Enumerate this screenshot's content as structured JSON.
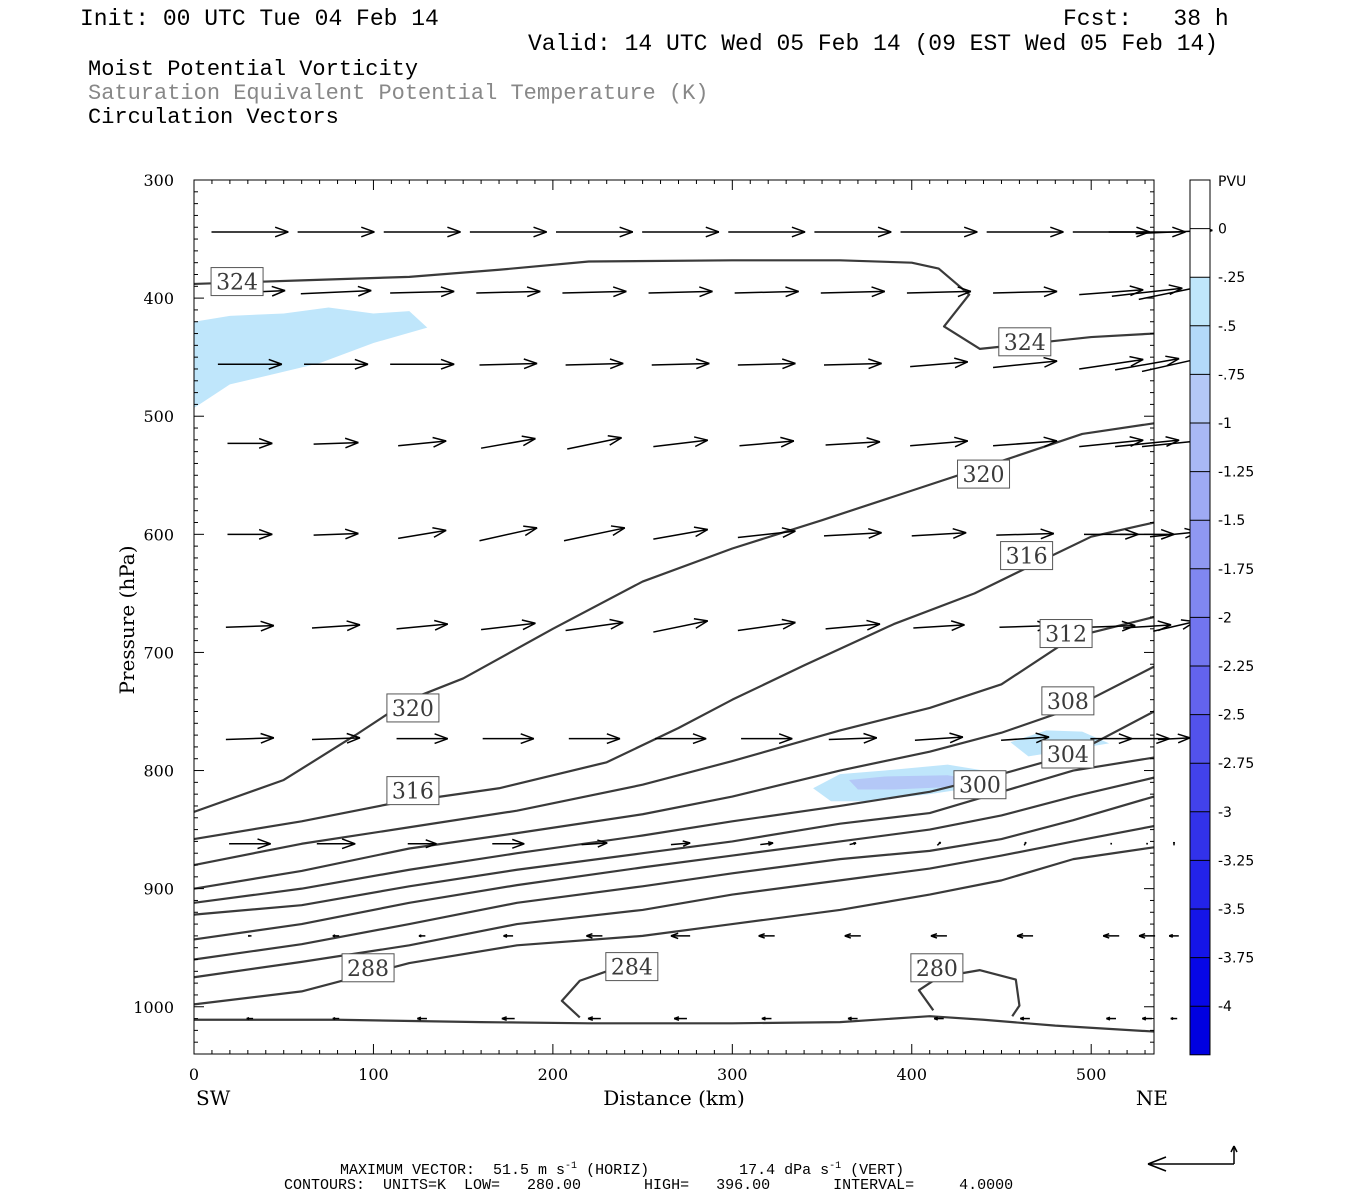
{
  "header": {
    "init": "Init: 00 UTC Tue 04 Feb 14",
    "fcst": "Fcst:   38 h",
    "valid": "Valid: 14 UTC Wed 05 Feb 14 (09 EST Wed 05 Feb 14)",
    "line1": "Moist Potential Vorticity",
    "line2": "Saturation Equivalent Potential Temperature (K)",
    "line3": "Circulation Vectors"
  },
  "footer": {
    "max_vector_prefix": "MAXIMUM VECTOR:  51.5 m s",
    "max_vector_mid": " (HORIZ)          17.4 dPa s",
    "max_vector_end": " (VERT)",
    "superscript": "-1",
    "contours": "CONTOURS:  UNITS=K  LOW=   280.00       HIGH=   396.00       INTERVAL=     4.0000"
  },
  "colors": {
    "contour": "#3a3a3a",
    "pv_light": "#bfe6fb",
    "pv_mid": "#a9b8f5",
    "axis": "#000000"
  },
  "chart_data": {
    "type": "cross-section",
    "xlabel": "Distance (km)",
    "ylabel": "Pressure (hPa)",
    "xlim": [
      0,
      535
    ],
    "ylim": [
      300,
      1040
    ],
    "y_log_like": false,
    "x_ticks": [
      "0",
      "100",
      "200",
      "300",
      "400",
      "500"
    ],
    "y_ticks": [
      "300",
      "400",
      "500",
      "600",
      "700",
      "800",
      "900",
      "1000"
    ],
    "left_end_label": "SW",
    "right_end_label": "NE",
    "colorbar": {
      "title": "PVU",
      "labels": [
        "0",
        "-.25",
        "-.5",
        "-.75",
        "-1",
        "-1.25",
        "-1.5",
        "-1.75",
        "-2",
        "-2.25",
        "-2.5",
        "-2.75",
        "-3",
        "-3.25",
        "-3.5",
        "-3.75",
        "-4"
      ],
      "colors": [
        "#ffffff",
        "#ffffff",
        "#bfe6fb",
        "#b3d9fa",
        "#b4c8f7",
        "#a9b8f5",
        "#9eaaf4",
        "#8f98f2",
        "#8087f1",
        "#7275ef",
        "#6363ee",
        "#5252ec",
        "#4242eb",
        "#3232ea",
        "#2323e9",
        "#1515e8",
        "#0707e6",
        "#0000e0"
      ]
    },
    "contour_labels": [
      {
        "value": "324",
        "x": 24,
        "p": 386
      },
      {
        "value": "324",
        "x": 463,
        "p": 437
      },
      {
        "value": "320",
        "x": 440,
        "p": 549
      },
      {
        "value": "316",
        "x": 464,
        "p": 618
      },
      {
        "value": "312",
        "x": 486,
        "p": 684
      },
      {
        "value": "308",
        "x": 487,
        "p": 741
      },
      {
        "value": "304",
        "x": 487,
        "p": 786
      },
      {
        "value": "300",
        "x": 438,
        "p": 812
      },
      {
        "value": "320",
        "x": 122,
        "p": 747
      },
      {
        "value": "316",
        "x": 122,
        "p": 817
      },
      {
        "value": "288",
        "x": 97,
        "p": 967
      },
      {
        "value": "284",
        "x": 244,
        "p": 966
      },
      {
        "value": "280",
        "x": 414,
        "p": 967
      }
    ],
    "contours": [
      {
        "value": 324,
        "points": [
          [
            0,
            388
          ],
          [
            60,
            385
          ],
          [
            120,
            382
          ],
          [
            170,
            376
          ],
          [
            220,
            369
          ],
          [
            300,
            368
          ],
          [
            360,
            368
          ],
          [
            400,
            370
          ],
          [
            415,
            375
          ],
          [
            432,
            397
          ],
          [
            418,
            424
          ],
          [
            438,
            443
          ],
          [
            500,
            433
          ],
          [
            535,
            430
          ]
        ]
      },
      {
        "value": 320,
        "points": [
          [
            0,
            835
          ],
          [
            50,
            808
          ],
          [
            90,
            770
          ],
          [
            120,
            740
          ],
          [
            150,
            722
          ],
          [
            200,
            680
          ],
          [
            250,
            640
          ],
          [
            300,
            612
          ],
          [
            350,
            588
          ],
          [
            400,
            563
          ],
          [
            450,
            538
          ],
          [
            495,
            515
          ],
          [
            535,
            506
          ]
        ]
      },
      {
        "value": 316,
        "points": [
          [
            0,
            858
          ],
          [
            60,
            843
          ],
          [
            110,
            828
          ],
          [
            170,
            815
          ],
          [
            230,
            793
          ],
          [
            270,
            764
          ],
          [
            300,
            740
          ],
          [
            340,
            711
          ],
          [
            390,
            676
          ],
          [
            435,
            650
          ],
          [
            470,
            624
          ],
          [
            500,
            602
          ],
          [
            535,
            590
          ]
        ]
      },
      {
        "value": 312,
        "points": [
          [
            0,
            880
          ],
          [
            60,
            862
          ],
          [
            120,
            848
          ],
          [
            180,
            834
          ],
          [
            250,
            812
          ],
          [
            300,
            792
          ],
          [
            360,
            766
          ],
          [
            410,
            747
          ],
          [
            450,
            727
          ],
          [
            490,
            687
          ],
          [
            535,
            670
          ]
        ]
      },
      {
        "value": 308,
        "points": [
          [
            0,
            900
          ],
          [
            60,
            885
          ],
          [
            120,
            866
          ],
          [
            180,
            853
          ],
          [
            250,
            837
          ],
          [
            300,
            822
          ],
          [
            360,
            800
          ],
          [
            410,
            784
          ],
          [
            450,
            768
          ],
          [
            490,
            747
          ],
          [
            535,
            712
          ]
        ]
      },
      {
        "value": 304,
        "points": [
          [
            0,
            912
          ],
          [
            60,
            900
          ],
          [
            120,
            884
          ],
          [
            180,
            870
          ],
          [
            250,
            855
          ],
          [
            300,
            843
          ],
          [
            360,
            830
          ],
          [
            410,
            818
          ],
          [
            450,
            803
          ],
          [
            490,
            786
          ],
          [
            535,
            750
          ]
        ]
      },
      {
        "value": 300,
        "points": [
          [
            0,
            922
          ],
          [
            60,
            914
          ],
          [
            120,
            898
          ],
          [
            180,
            884
          ],
          [
            250,
            870
          ],
          [
            300,
            860
          ],
          [
            360,
            845
          ],
          [
            410,
            836
          ],
          [
            450,
            818
          ],
          [
            490,
            800
          ],
          [
            535,
            789
          ]
        ]
      },
      {
        "value": 296,
        "points": [
          [
            0,
            943
          ],
          [
            60,
            930
          ],
          [
            120,
            912
          ],
          [
            180,
            897
          ],
          [
            250,
            882
          ],
          [
            300,
            872
          ],
          [
            360,
            860
          ],
          [
            410,
            850
          ],
          [
            450,
            838
          ],
          [
            490,
            822
          ],
          [
            535,
            806
          ]
        ]
      },
      {
        "value": 292,
        "points": [
          [
            0,
            960
          ],
          [
            60,
            947
          ],
          [
            120,
            930
          ],
          [
            180,
            912
          ],
          [
            250,
            898
          ],
          [
            300,
            887
          ],
          [
            360,
            875
          ],
          [
            410,
            868
          ],
          [
            450,
            858
          ],
          [
            490,
            842
          ],
          [
            535,
            822
          ]
        ]
      },
      {
        "value": 288,
        "points": [
          [
            0,
            975
          ],
          [
            60,
            962
          ],
          [
            120,
            948
          ],
          [
            180,
            930
          ],
          [
            250,
            918
          ],
          [
            300,
            905
          ],
          [
            360,
            893
          ],
          [
            410,
            883
          ],
          [
            450,
            872
          ],
          [
            490,
            860
          ],
          [
            535,
            847
          ]
        ]
      },
      {
        "value": 284,
        "points": [
          [
            0,
            998
          ],
          [
            60,
            987
          ],
          [
            120,
            963
          ],
          [
            180,
            948
          ],
          [
            250,
            940
          ],
          [
            300,
            930
          ],
          [
            360,
            918
          ],
          [
            410,
            905
          ],
          [
            450,
            893
          ],
          [
            490,
            875
          ],
          [
            535,
            865
          ]
        ]
      },
      {
        "value": 280,
        "points": [
          [
            0,
            1011
          ],
          [
            80,
            1011
          ],
          [
            160,
            1013
          ],
          [
            220,
            1014
          ],
          [
            300,
            1014
          ],
          [
            360,
            1013
          ],
          [
            410,
            1008
          ],
          [
            440,
            1011
          ],
          [
            480,
            1016
          ],
          [
            535,
            1021
          ]
        ]
      },
      {
        "value": 284,
        "points": [
          [
            215,
            1009
          ],
          [
            205,
            995
          ],
          [
            215,
            978
          ],
          [
            230,
            970
          ]
        ]
      },
      {
        "value": 280,
        "points": [
          [
            412,
            1003
          ],
          [
            404,
            986
          ],
          [
            415,
            975
          ],
          [
            438,
            969
          ],
          [
            458,
            977
          ],
          [
            460,
            999
          ],
          [
            456,
            1008
          ]
        ]
      }
    ],
    "pv_regions": [
      {
        "level": "-.25",
        "points": [
          [
            0,
            420
          ],
          [
            20,
            415
          ],
          [
            50,
            413
          ],
          [
            75,
            408
          ],
          [
            100,
            413
          ],
          [
            120,
            411
          ],
          [
            130,
            425
          ],
          [
            100,
            438
          ],
          [
            70,
            455
          ],
          [
            40,
            466
          ],
          [
            20,
            473
          ],
          [
            0,
            493
          ]
        ]
      },
      {
        "level": "-.25",
        "points": [
          [
            345,
            815
          ],
          [
            360,
            803
          ],
          [
            385,
            800
          ],
          [
            420,
            795
          ],
          [
            440,
            800
          ],
          [
            445,
            812
          ],
          [
            410,
            820
          ],
          [
            375,
            826
          ],
          [
            355,
            826
          ]
        ]
      },
      {
        "level": "-.75",
        "points": [
          [
            365,
            808
          ],
          [
            385,
            805
          ],
          [
            420,
            804
          ],
          [
            435,
            808
          ],
          [
            420,
            814
          ],
          [
            390,
            816
          ],
          [
            370,
            816
          ]
        ]
      },
      {
        "level": "-.25",
        "points": [
          [
            455,
            776
          ],
          [
            475,
            766
          ],
          [
            495,
            767
          ],
          [
            510,
            777
          ],
          [
            490,
            782
          ],
          [
            465,
            788
          ]
        ]
      }
    ],
    "vector_rows": [
      {
        "p": 344,
        "u": [
          48,
          48,
          48,
          48,
          48,
          48,
          48,
          48,
          48,
          48,
          48,
          48,
          48
        ],
        "w": [
          0,
          0,
          0,
          0,
          0,
          0,
          0,
          0,
          0,
          0,
          0,
          0,
          2
        ]
      },
      {
        "p": 395,
        "u": [
          44,
          44,
          40,
          40,
          40,
          40,
          40,
          40,
          40,
          40,
          40,
          44,
          44
        ],
        "w": [
          2,
          2,
          1,
          1,
          1,
          1,
          1,
          1,
          1,
          1,
          3,
          5,
          9
        ]
      },
      {
        "p": 456,
        "u": [
          40,
          40,
          40,
          36,
          36,
          36,
          36,
          36,
          36,
          40,
          40,
          40,
          40
        ],
        "w": [
          0,
          0,
          0,
          1,
          1,
          1,
          1,
          1,
          3,
          4,
          6,
          7,
          9
        ]
      },
      {
        "p": 523,
        "u": [
          28,
          28,
          30,
          34,
          34,
          34,
          34,
          34,
          36,
          40,
          40,
          40,
          40
        ],
        "w": [
          0,
          1,
          3,
          6,
          7,
          4,
          3,
          2,
          3,
          3,
          4,
          4,
          4
        ]
      },
      {
        "p": 600,
        "u": [
          28,
          28,
          30,
          36,
          38,
          34,
          36,
          36,
          34,
          36,
          34,
          34,
          30
        ],
        "w": [
          0,
          1,
          5,
          8,
          8,
          6,
          4,
          2,
          2,
          1,
          0,
          0,
          3
        ]
      },
      {
        "p": 678,
        "u": [
          30,
          30,
          32,
          34,
          36,
          34,
          36,
          34,
          32,
          32,
          30,
          30,
          26
        ],
        "w": [
          1,
          2,
          3,
          4,
          5,
          7,
          5,
          3,
          2,
          1,
          1,
          2,
          6
        ]
      },
      {
        "p": 773,
        "u": [
          30,
          30,
          32,
          32,
          32,
          32,
          32,
          30,
          30,
          30,
          26,
          28,
          20
        ],
        "w": [
          1,
          1,
          0,
          0,
          0,
          0,
          0,
          1,
          2,
          2,
          0,
          0,
          1
        ]
      },
      {
        "p": 862,
        "u": [
          26,
          24,
          18,
          20,
          16,
          12,
          8,
          4,
          2,
          1,
          0,
          0,
          0
        ],
        "w": [
          0,
          0,
          0,
          0,
          1,
          1,
          1,
          1,
          2,
          2,
          1,
          1,
          2
        ]
      },
      {
        "p": 940,
        "u": [
          -2,
          -4,
          -4,
          -6,
          -10,
          -12,
          -10,
          -10,
          -10,
          -10,
          -10,
          -10,
          -6
        ],
        "w": [
          0,
          0,
          0,
          0,
          0,
          0,
          0,
          0,
          0,
          0,
          0,
          0,
          0
        ]
      },
      {
        "p": 1010,
        "u": [
          -4,
          -4,
          -6,
          -8,
          -8,
          -8,
          -6,
          -6,
          -6,
          -6,
          -6,
          -6,
          -4
        ],
        "w": [
          0,
          0,
          0,
          0,
          0,
          0,
          0,
          0,
          0,
          0,
          0,
          0,
          0
        ]
      }
    ],
    "vector_x": [
      20,
      68,
      116,
      164,
      212,
      260,
      308,
      356,
      404,
      452,
      500,
      520,
      535
    ]
  }
}
